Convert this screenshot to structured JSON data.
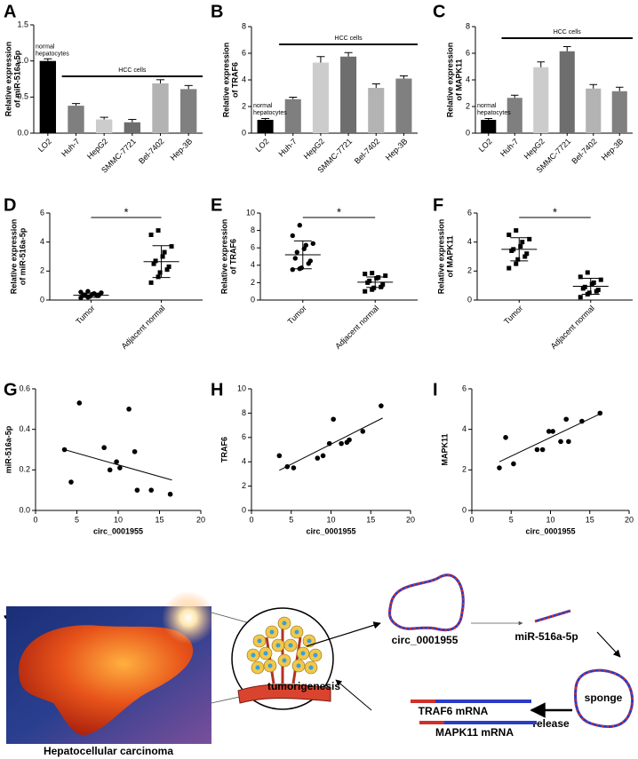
{
  "chart_data": [
    {
      "panel": "A",
      "type": "bar",
      "ylabel": [
        "Relative expression",
        "of miR-516a-5p"
      ],
      "categories": [
        "LO2",
        "Huh-7",
        "HepG2",
        "SMMC-7721",
        "Bel-7402",
        "Hep-3B"
      ],
      "values": [
        1.0,
        0.38,
        0.19,
        0.15,
        0.69,
        0.61
      ],
      "errors": [
        0.03,
        0.03,
        0.03,
        0.04,
        0.05,
        0.05
      ],
      "colors": [
        "#000000",
        "#7f7f7f",
        "#cccccc",
        "#6e6e6e",
        "#b3b3b3",
        "#808080"
      ],
      "ylim": [
        0,
        1.5
      ],
      "yticks": [
        {
          "value": 0,
          "label": "0.0"
        },
        {
          "value": 0.5,
          "label": "0.5"
        },
        {
          "value": 1,
          "label": "1.0"
        },
        {
          "value": 1.5,
          "label": "1.5"
        }
      ],
      "annotations": {
        "normal": [
          "normal",
          "hepatocytes"
        ],
        "group": "HCC cells"
      }
    },
    {
      "panel": "B",
      "type": "bar",
      "ylabel": [
        "Relative expression",
        "of TRAF6"
      ],
      "categories": [
        "LO2",
        "Huh-7",
        "HepG2",
        "SMMC-7721",
        "Bel-7402",
        "Hep-3B"
      ],
      "values": [
        1.0,
        2.55,
        5.3,
        5.75,
        3.4,
        4.1
      ],
      "errors": [
        0.1,
        0.15,
        0.45,
        0.3,
        0.3,
        0.2
      ],
      "colors": [
        "#000000",
        "#7f7f7f",
        "#cccccc",
        "#6e6e6e",
        "#b3b3b3",
        "#808080"
      ],
      "ylim": [
        0,
        8
      ],
      "yticks": [
        0,
        2,
        4,
        6,
        8
      ],
      "annotations": {
        "normal": [
          "normal",
          "hepatocytes"
        ],
        "group": "HCC cells"
      }
    },
    {
      "panel": "C",
      "type": "bar",
      "ylabel": [
        "Relative expression",
        "of MAPK11"
      ],
      "categories": [
        "LO2",
        "Huh-7",
        "HepG2",
        "SMMC-7721",
        "Bel-7402",
        "Hep-3B"
      ],
      "values": [
        1.0,
        2.65,
        4.95,
        6.15,
        3.35,
        3.15
      ],
      "errors": [
        0.1,
        0.2,
        0.4,
        0.35,
        0.3,
        0.3
      ],
      "colors": [
        "#000000",
        "#7f7f7f",
        "#cccccc",
        "#6e6e6e",
        "#b3b3b3",
        "#808080"
      ],
      "ylim": [
        0,
        8
      ],
      "yticks": [
        0,
        2,
        4,
        6,
        8
      ],
      "annotations": {
        "normal": [
          "normal",
          "hepatocytes"
        ],
        "group": "HCC cells"
      }
    },
    {
      "panel": "D",
      "type": "strip",
      "ylabel": [
        "Relative expression",
        "of miR-516a-5p"
      ],
      "categories": [
        "Tumor",
        "Adjacent normal"
      ],
      "series": [
        {
          "color": "#000000",
          "marker": "circle",
          "values": [
            0.15,
            0.2,
            0.25,
            0.3,
            0.3,
            0.35,
            0.35,
            0.4,
            0.45,
            0.5,
            0.55,
            0.6
          ],
          "mean": 0.33,
          "sd": 0.15
        },
        {
          "color": "#000000",
          "marker": "square",
          "values": [
            1.2,
            1.6,
            1.9,
            2.1,
            2.3,
            2.5,
            2.7,
            3.0,
            3.3,
            3.7,
            4.5,
            4.8
          ],
          "mean": 2.65,
          "sd": 1.1
        }
      ],
      "ylim": [
        0,
        6
      ],
      "yticks": [
        0,
        2,
        4,
        6
      ],
      "significance": "*"
    },
    {
      "panel": "E",
      "type": "strip",
      "ylabel": [
        "Relative expression",
        "of TRAF6"
      ],
      "categories": [
        "Tumor",
        "Adjacent normal"
      ],
      "series": [
        {
          "color": "#000000",
          "marker": "circle",
          "values": [
            3.5,
            3.6,
            3.7,
            4.2,
            4.5,
            4.8,
            5.5,
            5.9,
            6.3,
            6.5,
            7.4,
            8.6
          ],
          "mean": 5.2,
          "sd": 1.6
        },
        {
          "color": "#000000",
          "marker": "square",
          "values": [
            1.0,
            1.2,
            1.4,
            1.5,
            1.8,
            2.0,
            2.2,
            2.5,
            2.6,
            2.8,
            3.0,
            3.1
          ],
          "mean": 2.05,
          "sd": 0.6
        }
      ],
      "ylim": [
        0,
        10
      ],
      "yticks": [
        0,
        2,
        4,
        6,
        8,
        10
      ],
      "significance": "*"
    },
    {
      "panel": "F",
      "type": "strip",
      "ylabel": [
        "Relative expression",
        "of MAPK11"
      ],
      "categories": [
        "Tumor",
        "Adjacent normal"
      ],
      "series": [
        {
          "color": "#000000",
          "marker": "square",
          "values": [
            2.2,
            2.5,
            2.8,
            3.0,
            3.2,
            3.4,
            3.5,
            3.7,
            4.0,
            4.2,
            4.5,
            4.8
          ],
          "mean": 3.5,
          "sd": 0.8
        },
        {
          "color": "#000000",
          "marker": "square",
          "values": [
            0.2,
            0.4,
            0.5,
            0.6,
            0.7,
            0.8,
            0.9,
            1.1,
            1.2,
            1.4,
            1.6,
            1.9
          ],
          "mean": 0.95,
          "sd": 0.55
        }
      ],
      "ylim": [
        0,
        6
      ],
      "yticks": [
        0,
        2,
        4,
        6
      ],
      "significance": "*"
    },
    {
      "panel": "G",
      "type": "scatter",
      "xlabel": "circ_0001955",
      "ylabel": "miR-516a-5p",
      "x": [
        3.5,
        4.3,
        5.3,
        8.3,
        9.0,
        9.8,
        10.2,
        11.3,
        12.0,
        12.3,
        14.0,
        16.3
      ],
      "values": [
        0.3,
        0.14,
        0.53,
        0.31,
        0.2,
        0.24,
        0.21,
        0.5,
        0.29,
        0.1,
        0.1,
        0.08
      ],
      "color": "#000000",
      "fit": {
        "x": [
          3.5,
          16.5
        ],
        "y": [
          0.3,
          0.15
        ]
      },
      "xlim": [
        0,
        20
      ],
      "xticks": [
        0,
        5,
        10,
        15,
        20
      ],
      "ylim": [
        0,
        0.6
      ],
      "yticks": [
        {
          "value": 0,
          "label": "0.0"
        },
        {
          "value": 0.2,
          "label": "0.2"
        },
        {
          "value": 0.4,
          "label": "0.4"
        },
        {
          "value": 0.6,
          "label": "0.6"
        }
      ]
    },
    {
      "panel": "H",
      "type": "scatter",
      "xlabel": "circ_0001955",
      "ylabel": "TRAF6",
      "x": [
        3.5,
        4.5,
        5.3,
        8.3,
        9.0,
        9.8,
        10.3,
        11.3,
        12.0,
        12.3,
        14.0,
        16.3
      ],
      "values": [
        4.5,
        3.6,
        3.5,
        4.3,
        4.5,
        5.5,
        7.5,
        5.5,
        5.6,
        5.8,
        6.5,
        8.6
      ],
      "color": "#000000",
      "fit": {
        "x": [
          3.5,
          16.5
        ],
        "y": [
          3.3,
          7.6
        ]
      },
      "xlim": [
        0,
        20
      ],
      "xticks": [
        0,
        5,
        10,
        15,
        20
      ],
      "ylim": [
        0,
        10
      ],
      "yticks": [
        0,
        2,
        4,
        6,
        8,
        10
      ]
    },
    {
      "panel": "I",
      "type": "scatter",
      "xlabel": "circ_0001955",
      "ylabel": "MAPK11",
      "x": [
        3.5,
        4.3,
        5.3,
        8.3,
        9.0,
        9.8,
        10.3,
        11.3,
        12.0,
        12.3,
        14.0,
        16.3
      ],
      "values": [
        2.1,
        3.6,
        2.3,
        3.0,
        3.0,
        3.9,
        3.9,
        3.4,
        4.5,
        3.4,
        4.4,
        4.8
      ],
      "color": "#000000",
      "fit": {
        "x": [
          3.5,
          16.5
        ],
        "y": [
          2.4,
          4.8
        ]
      },
      "xlim": [
        0,
        20
      ],
      "xticks": [
        0,
        5,
        10,
        15,
        20
      ],
      "ylim": [
        0,
        6
      ],
      "yticks": [
        0,
        2,
        4,
        6
      ]
    }
  ],
  "diagram": {
    "panel": "J",
    "caption": "Hepatocellular carcinoma",
    "circ": "circ_0001955",
    "mirna": "miR-516a-5p",
    "sponge": "sponge",
    "release": "release",
    "mrna1": "TRAF6 mRNA",
    "mrna2": "MAPK11 mRNA",
    "outcome": "tumorigenesis"
  }
}
